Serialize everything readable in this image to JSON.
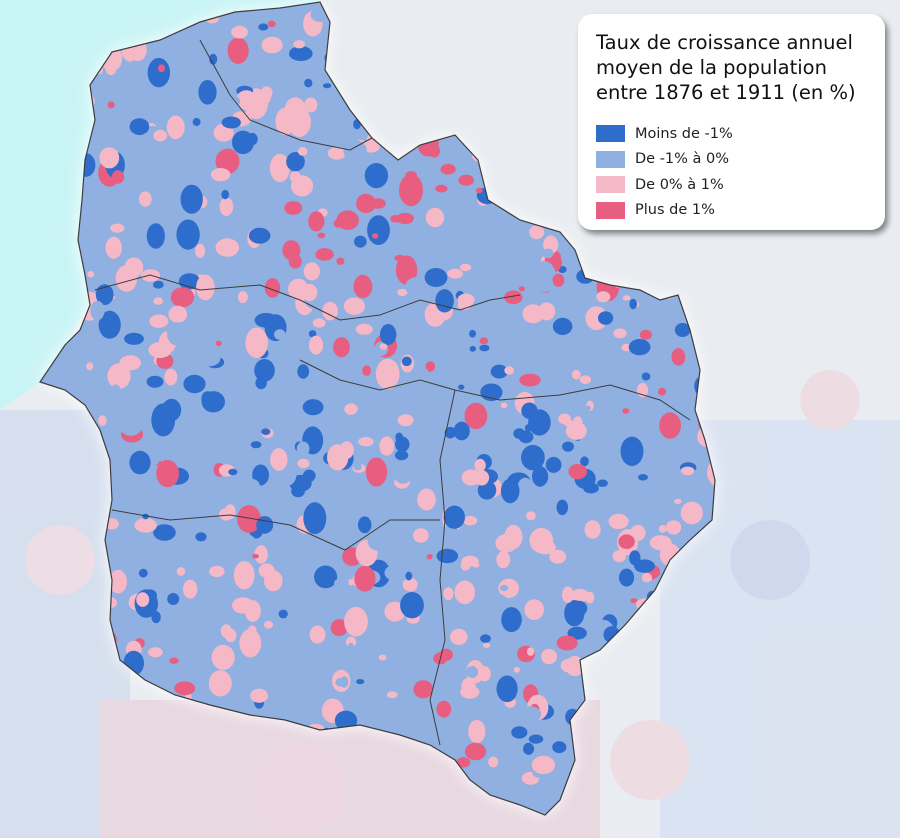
{
  "legend": {
    "title_lines": [
      "Taux de croissance annuel",
      "moyen de la population",
      "entre 1876 et 1911 (en %)"
    ],
    "items": [
      {
        "label": "Moins de -1%",
        "color": "#2f6dcc"
      },
      {
        "label": "De -1% à 0%",
        "color": "#8fb0e0"
      },
      {
        "label": "De 0% à 1%",
        "color": "#f4b8c7"
      },
      {
        "label": "Plus de 1%",
        "color": "#e85e80"
      }
    ]
  },
  "map_colors": {
    "sea": "#c9f4f5",
    "land_outside": "#e9ecf0",
    "border": "#3d3d3d"
  }
}
